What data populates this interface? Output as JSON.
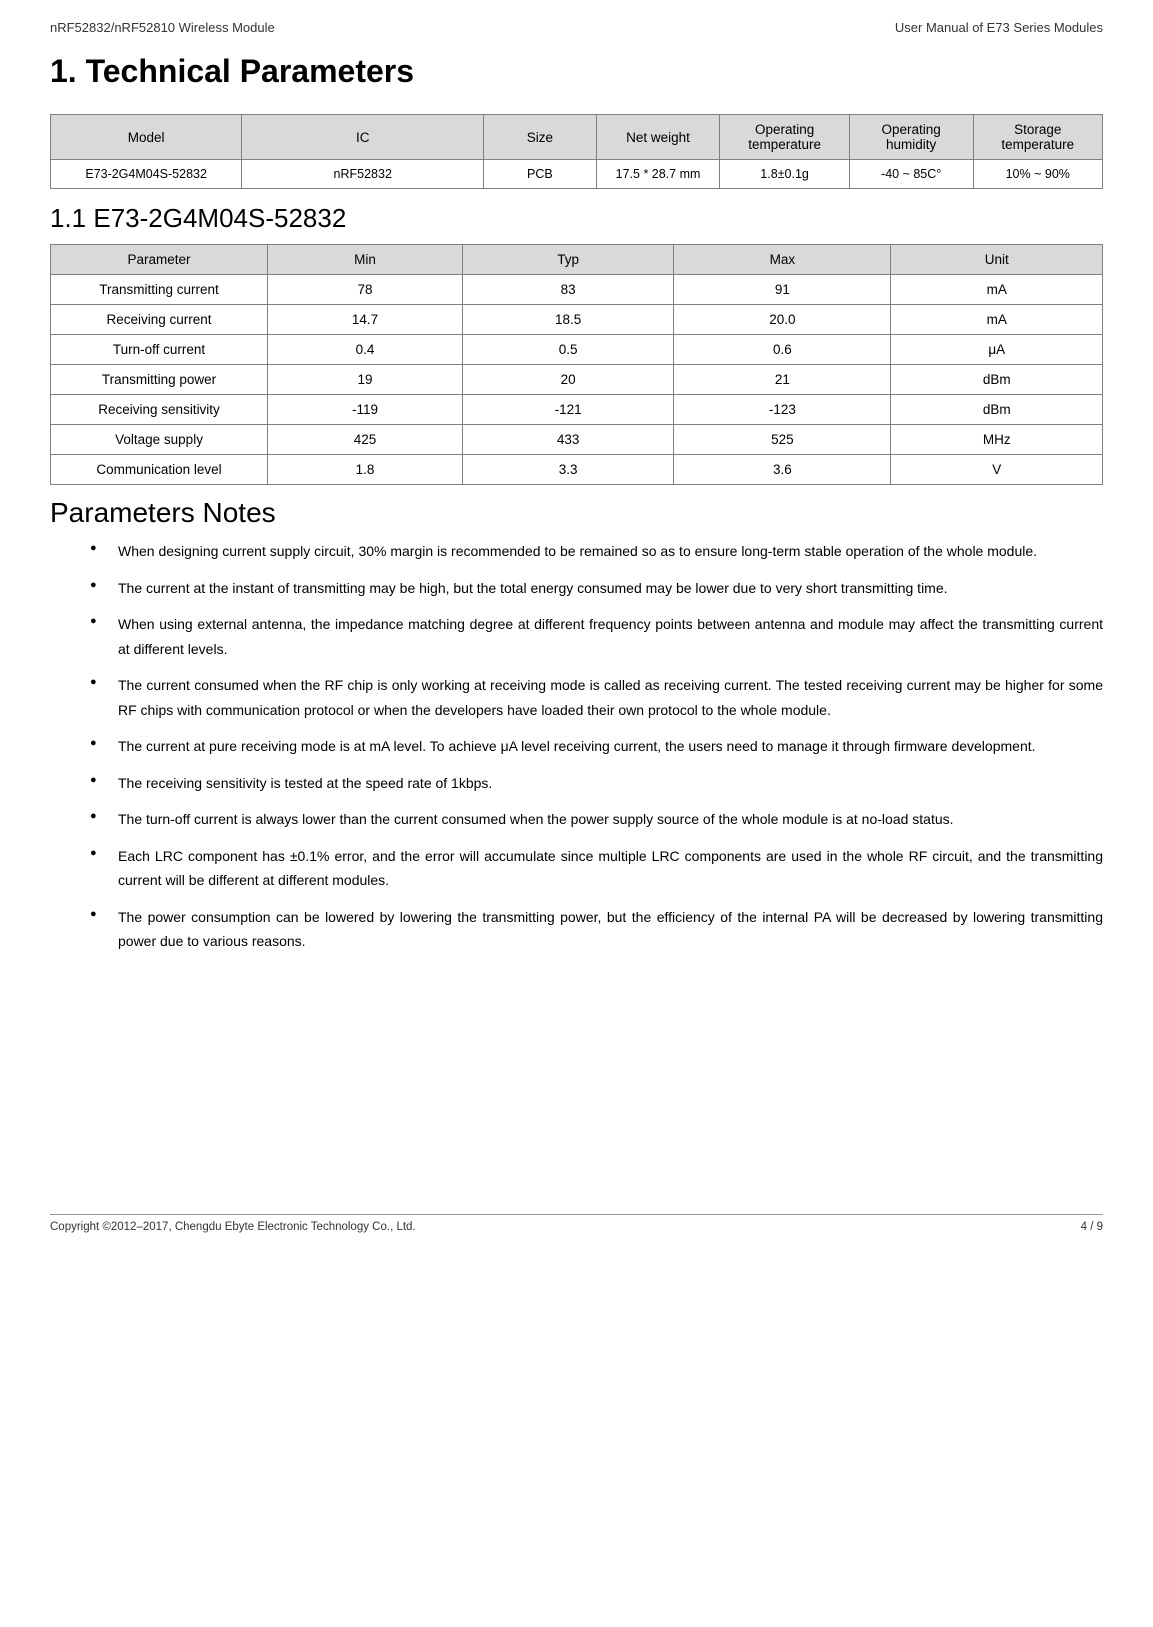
{
  "header": {
    "left": "nRF52832/nRF52810 Wireless Module",
    "right": "User Manual of E73 Series Modules"
  },
  "section": {
    "title": "1. Technical Parameters",
    "subsection_title": "1.1 E73-2G4M04S-52832",
    "notes_title": "Parameters Notes"
  },
  "model_table": {
    "headers": [
      "Model",
      "IC",
      "Size",
      "Net weight",
      "Operating temperature",
      "Operating humidity",
      "Storage temperature"
    ],
    "row": [
      "E73-2G4M04S-52832",
      "nRF52832",
      "PCB",
      "17.5 * 28.7 mm",
      "1.8±0.1g",
      "-40 ~ 85C°",
      "10% ~ 90%"
    ],
    "col_widths": [
      "170px",
      "215px",
      "100px",
      "110px",
      "115px",
      "110px",
      "115px"
    ]
  },
  "param_table": {
    "headers": [
      "Parameter",
      "Min",
      "Typ",
      "Max",
      "Unit"
    ],
    "rows": [
      [
        "Transmitting current",
        "78",
        "83",
        "91",
        "mA"
      ],
      [
        "Receiving current",
        "14.7",
        "18.5",
        "20.0",
        "mA"
      ],
      [
        "Turn-off current",
        "0.4",
        "0.5",
        "0.6",
        "μA"
      ],
      [
        "Transmitting power",
        "19",
        "20",
        "21",
        "dBm"
      ],
      [
        "Receiving sensitivity",
        "-119",
        "-121",
        "-123",
        "dBm"
      ],
      [
        "Voltage supply",
        "425",
        "433",
        "525",
        "MHz"
      ],
      [
        "Communication level",
        "1.8",
        "3.3",
        "3.6",
        "V"
      ]
    ],
    "col_widths": [
      "195px",
      "175px",
      "190px",
      "195px",
      "190px"
    ]
  },
  "notes": [
    "When designing current supply circuit, 30% margin is recommended to be remained so as to ensure long-term stable operation of the whole module.",
    "The current at the instant of transmitting may be high, but the total energy consumed may be lower due to very short transmitting time.",
    "When using external antenna, the impedance matching degree at different frequency points between antenna and module may affect the transmitting current at different levels.",
    "The current consumed when the RF chip is only working at receiving mode is called as receiving current. The tested receiving current may be higher for some RF chips with communication protocol or when the developers have loaded their own protocol to the whole module.",
    "The current at pure receiving mode is at mA level. To achieve μA level receiving current, the users need to manage it through firmware development.",
    "The receiving sensitivity is tested at the speed rate of 1kbps.",
    "The turn-off current is always lower than the current consumed when the power supply source of the whole module is at no-load status.",
    "Each LRC component has ±0.1% error, and the error will accumulate since multiple LRC components are used in the whole RF circuit, and the transmitting current will be different at different modules.",
    "The power consumption can be lowered by lowering the transmitting power, but the efficiency of the internal PA will be decreased by lowering transmitting power due to various reasons."
  ],
  "footer": {
    "left": "Copyright ©2012–2017, Chengdu Ebyte Electronic Technology Co., Ltd.",
    "right": "4 / 9"
  },
  "colors": {
    "header_bg": "#d9d9d9",
    "border": "#7f7f7f",
    "text": "#000000"
  }
}
